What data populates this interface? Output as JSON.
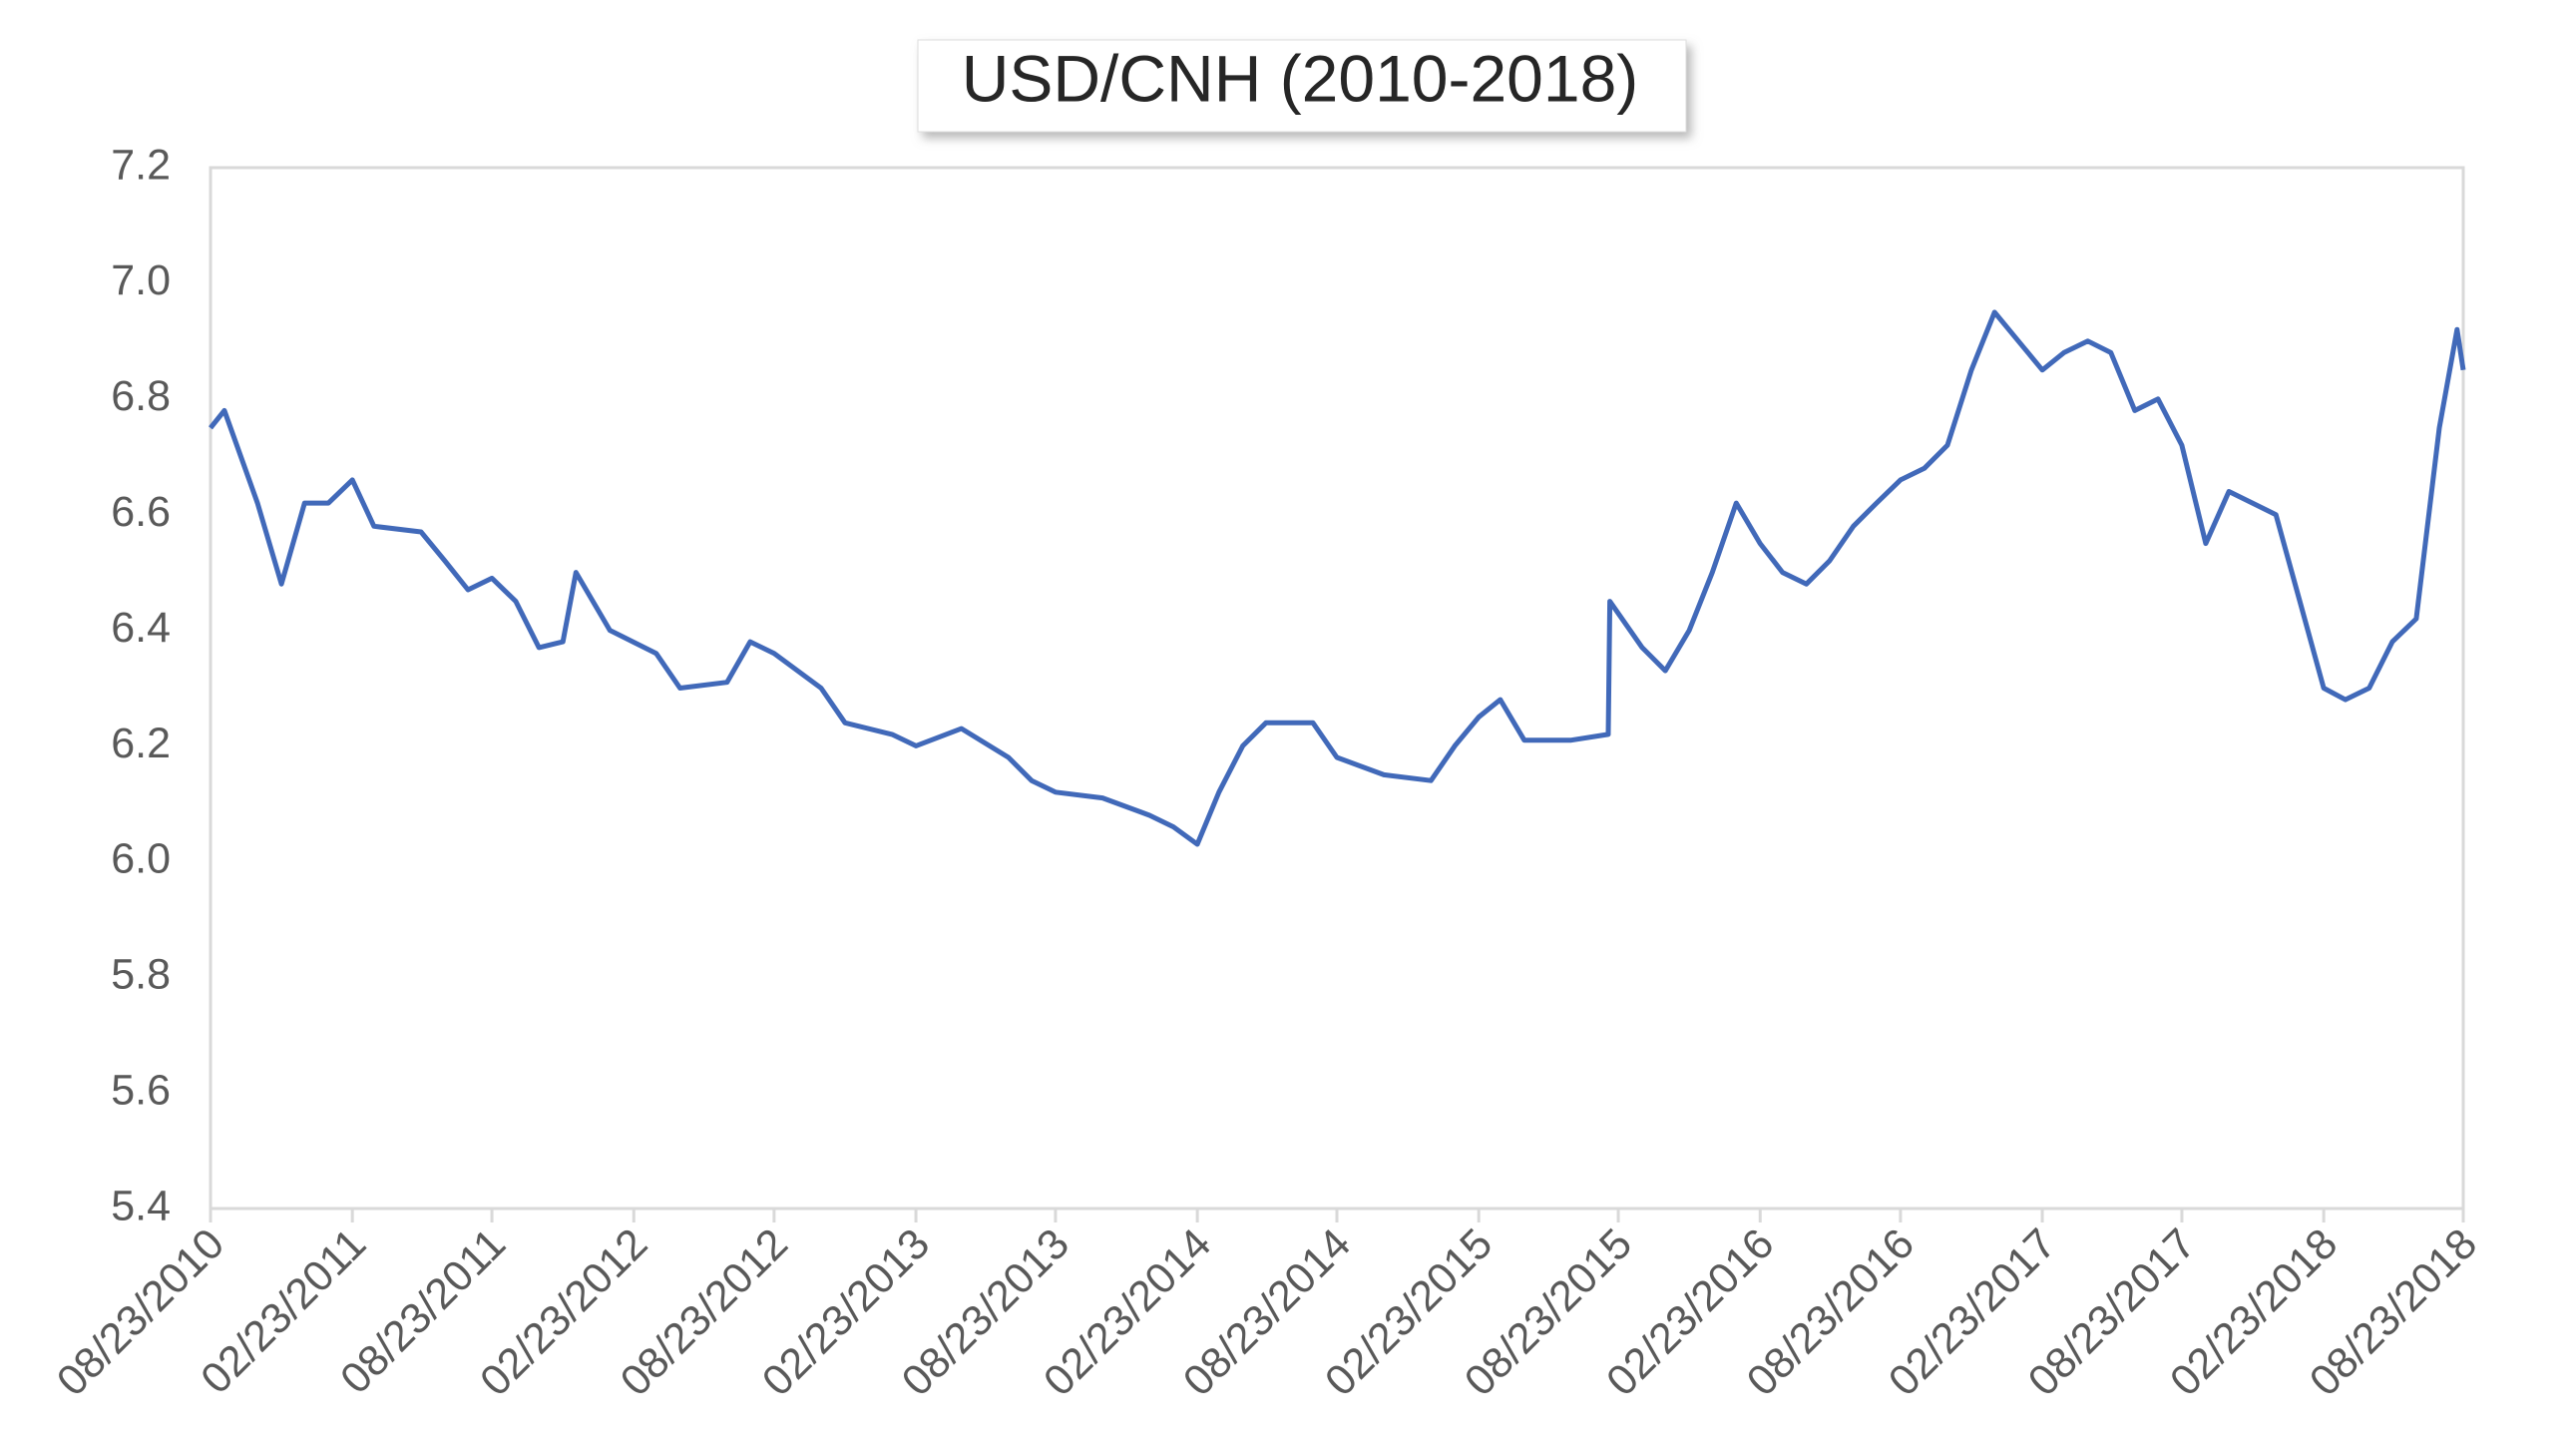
{
  "chart_data": {
    "type": "line",
    "title": "USD/CNH (2010-2018)",
    "x": [
      "08/23/2010",
      "09/10/2010",
      "10/23/2010",
      "11/23/2010",
      "12/23/2010",
      "01/23/2011",
      "02/23/2011",
      "03/23/2011",
      "05/23/2011",
      "06/23/2011",
      "07/23/2011",
      "08/23/2011",
      "09/23/2011",
      "10/23/2011",
      "11/23/2011",
      "12/10/2011",
      "01/23/2012",
      "03/23/2012",
      "04/23/2012",
      "06/23/2012",
      "07/23/2012",
      "08/23/2012",
      "10/23/2012",
      "11/23/2012",
      "01/23/2013",
      "02/23/2013",
      "04/23/2013",
      "06/23/2013",
      "07/23/2013",
      "08/23/2013",
      "10/23/2013",
      "12/23/2013",
      "01/23/2014",
      "02/23/2014",
      "03/23/2014",
      "04/23/2014",
      "05/23/2014",
      "07/23/2014",
      "08/23/2014",
      "10/23/2014",
      "12/23/2014",
      "01/23/2015",
      "02/23/2015",
      "03/23/2015",
      "04/23/2015",
      "06/23/2015",
      "08/10/2015",
      "08/12/2015",
      "09/23/2015",
      "10/23/2015",
      "11/23/2015",
      "12/23/2015",
      "01/23/2016",
      "02/23/2016",
      "03/23/2016",
      "04/23/2016",
      "05/23/2016",
      "06/23/2016",
      "07/23/2016",
      "08/23/2016",
      "09/23/2016",
      "10/23/2016",
      "11/23/2016",
      "12/23/2016",
      "01/23/2017",
      "02/23/2017",
      "03/23/2017",
      "04/23/2017",
      "05/23/2017",
      "06/23/2017",
      "07/23/2017",
      "08/23/2017",
      "09/23/2017",
      "10/23/2017",
      "12/23/2017",
      "01/23/2018",
      "02/23/2018",
      "03/23/2018",
      "04/23/2018",
      "05/23/2018",
      "06/23/2018",
      "07/23/2018",
      "08/15/2018",
      "08/23/2018"
    ],
    "series": [
      {
        "name": "USD/CNH",
        "color": "#4169b9",
        "values": [
          6.75,
          6.78,
          6.62,
          6.48,
          6.62,
          6.62,
          6.66,
          6.58,
          6.57,
          6.52,
          6.47,
          6.49,
          6.45,
          6.37,
          6.38,
          6.5,
          6.4,
          6.36,
          6.3,
          6.31,
          6.38,
          6.36,
          6.3,
          6.24,
          6.22,
          6.2,
          6.23,
          6.18,
          6.14,
          6.12,
          6.11,
          6.08,
          6.06,
          6.03,
          6.12,
          6.2,
          6.24,
          6.24,
          6.18,
          6.15,
          6.14,
          6.2,
          6.25,
          6.28,
          6.21,
          6.21,
          6.22,
          6.45,
          6.37,
          6.33,
          6.4,
          6.5,
          6.62,
          6.55,
          6.5,
          6.48,
          6.52,
          6.58,
          6.62,
          6.66,
          6.68,
          6.72,
          6.85,
          6.95,
          6.9,
          6.85,
          6.88,
          6.9,
          6.88,
          6.78,
          6.8,
          6.72,
          6.55,
          6.64,
          6.6,
          6.45,
          6.3,
          6.28,
          6.3,
          6.38,
          6.42,
          6.75,
          6.92,
          6.85
        ]
      }
    ],
    "xlim": [
      "08/23/2010",
      "08/23/2018"
    ],
    "xticks": [
      "08/23/2010",
      "02/23/2011",
      "08/23/2011",
      "02/23/2012",
      "08/23/2012",
      "02/23/2013",
      "08/23/2013",
      "02/23/2014",
      "08/23/2014",
      "02/23/2015",
      "08/23/2015",
      "02/23/2016",
      "08/23/2016",
      "02/23/2017",
      "08/23/2017",
      "02/23/2018",
      "08/23/2018"
    ],
    "ylim": [
      5.4,
      7.2
    ],
    "yticks": [
      5.4,
      5.6,
      5.8,
      {
        "value": 6,
        "label": "6.0"
      },
      6.2,
      6.4,
      6.6,
      6.8,
      {
        "value": 7,
        "label": "7.0"
      },
      7.2
    ],
    "grid": false
  }
}
